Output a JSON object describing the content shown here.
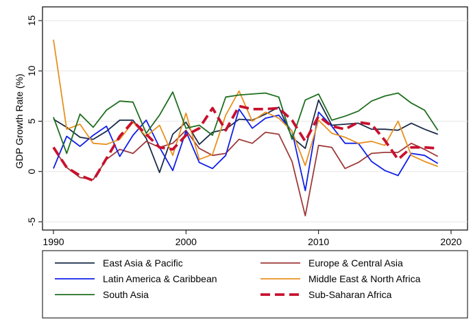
{
  "chart_data": {
    "type": "line",
    "title": "",
    "xlabel": "",
    "ylabel": "GDP Growth Rate (%)",
    "xlim": [
      1990,
      2020
    ],
    "ylim": [
      -5,
      15
    ],
    "x_ticks": [
      "1990",
      "2000",
      "2010",
      "2020"
    ],
    "y_ticks": [
      "-5",
      "0",
      "5",
      "10",
      "15"
    ],
    "grid": "horizontal",
    "legend_position": "bottom",
    "x": [
      1990,
      1991,
      1992,
      1993,
      1994,
      1995,
      1996,
      1997,
      1998,
      1999,
      2000,
      2001,
      2002,
      2003,
      2004,
      2005,
      2006,
      2007,
      2008,
      2009,
      2010,
      2011,
      2012,
      2013,
      2014,
      2015,
      2016,
      2017,
      2018,
      2019
    ],
    "series": [
      {
        "name": "East Asia & Pacific",
        "color": "#1a2b49",
        "dash": "solid",
        "values": [
          5.2,
          4.4,
          3.4,
          3.2,
          4.0,
          5.1,
          5.1,
          3.3,
          -0.1,
          3.7,
          4.9,
          2.7,
          3.9,
          4.2,
          5.2,
          5.1,
          5.7,
          6.4,
          3.4,
          2.3,
          7.1,
          4.6,
          4.7,
          4.8,
          4.2,
          4.2,
          4.1,
          4.8,
          4.2,
          3.7
        ]
      },
      {
        "name": "Europe & Central Asia",
        "color": "#9e3a38",
        "dash": "solid",
        "values": [
          2.3,
          0.4,
          -0.6,
          -0.8,
          1.2,
          2.2,
          1.8,
          3.0,
          2.4,
          2.8,
          4.1,
          2.3,
          1.6,
          1.8,
          3.2,
          2.8,
          3.9,
          3.7,
          1.0,
          -4.4,
          2.6,
          2.4,
          0.3,
          0.9,
          1.8,
          1.9,
          1.9,
          2.8,
          2.2,
          1.5
        ]
      },
      {
        "name": "Latin America & Caribbean",
        "color": "#0f1ee8",
        "dash": "solid",
        "values": [
          0.3,
          3.5,
          2.5,
          3.6,
          4.5,
          1.5,
          3.6,
          5.1,
          2.4,
          0.1,
          4.0,
          0.9,
          0.3,
          1.6,
          6.2,
          4.3,
          5.3,
          5.6,
          4.0,
          -1.9,
          5.9,
          4.5,
          2.8,
          2.8,
          1.0,
          0.1,
          -0.4,
          1.8,
          1.6,
          0.8
        ]
      },
      {
        "name": "Middle East & North Africa",
        "color": "#e8901e",
        "dash": "solid",
        "values": [
          13.1,
          4.2,
          4.7,
          2.8,
          2.7,
          3.2,
          4.9,
          3.5,
          4.6,
          1.6,
          5.8,
          1.2,
          1.7,
          5.6,
          8.0,
          5.0,
          5.9,
          5.3,
          4.0,
          0.6,
          5.1,
          3.8,
          3.4,
          2.8,
          3.0,
          2.6,
          5.0,
          1.6,
          1.0,
          0.5
        ]
      },
      {
        "name": "South Asia",
        "color": "#1e6e1e",
        "dash": "solid",
        "values": [
          5.4,
          1.8,
          5.7,
          4.4,
          6.1,
          7.0,
          6.9,
          3.8,
          5.6,
          7.9,
          4.3,
          4.6,
          3.6,
          7.4,
          7.6,
          7.7,
          7.8,
          7.4,
          3.2,
          7.1,
          7.7,
          5.1,
          5.5,
          6.0,
          7.0,
          7.5,
          7.8,
          6.8,
          6.1,
          4.1
        ]
      },
      {
        "name": "Sub-Saharan Africa",
        "color": "#c8102e",
        "dash": "dashed",
        "values": [
          2.4,
          0.4,
          -0.4,
          -0.9,
          1.3,
          3.5,
          5.0,
          3.7,
          2.4,
          2.2,
          3.6,
          4.3,
          6.3,
          4.1,
          6.5,
          6.2,
          6.2,
          6.3,
          5.1,
          3.0,
          5.5,
          4.5,
          4.2,
          4.9,
          4.7,
          3.1,
          1.2,
          2.4,
          2.4,
          2.3
        ]
      }
    ]
  }
}
